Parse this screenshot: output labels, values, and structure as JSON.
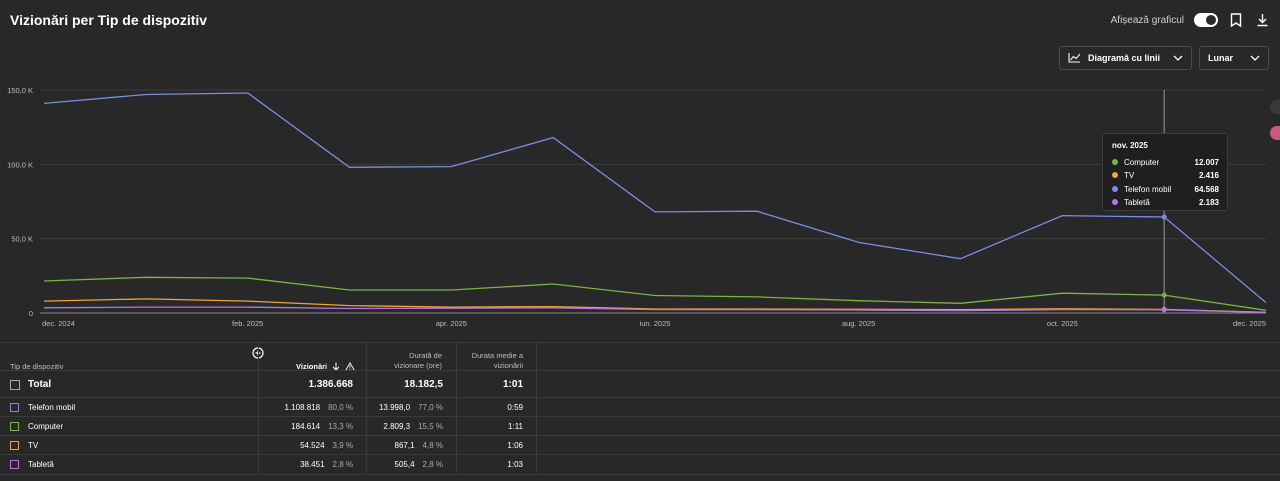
{
  "page_title": "Vizionări per Tip de dispozitiv",
  "topbar": {
    "toggle_label": "Afișează graficul"
  },
  "controls": {
    "chart_type": "Diagramă cu linii",
    "period": "Lunar"
  },
  "colors": {
    "mobile": "#7b8de0",
    "computer": "#7cb342",
    "tv": "#f0a43a",
    "tablet": "#b874e6",
    "background": "#282828"
  },
  "chart_data": {
    "type": "line",
    "x": [
      "dec. 2024",
      "ian. 2025",
      "feb. 2025",
      "mar. 2025",
      "apr. 2025",
      "mai 2025",
      "iun. 2025",
      "iul. 2025",
      "aug. 2025",
      "sept. 2025",
      "oct. 2025",
      "nov. 2025",
      "dec. 2025"
    ],
    "x_tick_labels": [
      "dec. 2024",
      "feb. 2025",
      "apr. 2025",
      "iun. 2025",
      "aug. 2025",
      "oct. 2025",
      "dec. 2025"
    ],
    "y_tick_labels": [
      "150,0 K",
      "100,0 K",
      "50,0 K",
      "0"
    ],
    "ylim": [
      0,
      150000
    ],
    "grid": true,
    "series": [
      {
        "name": "Telefon mobil",
        "color": "#7b8de0",
        "values": [
          141000,
          147000,
          148000,
          98000,
          98500,
          118000,
          68000,
          68500,
          47500,
          36500,
          65500,
          64568,
          7000
        ]
      },
      {
        "name": "Computer",
        "color": "#7cb342",
        "values": [
          21500,
          24000,
          23500,
          15500,
          15500,
          19500,
          11800,
          10800,
          8300,
          6500,
          13300,
          12007,
          1800
        ]
      },
      {
        "name": "TV",
        "color": "#f0a43a",
        "values": [
          8000,
          9500,
          8000,
          5000,
          4000,
          4300,
          2700,
          2700,
          2500,
          2200,
          2800,
          2416,
          500
        ]
      },
      {
        "name": "Tabletă",
        "color": "#b874e6",
        "values": [
          3500,
          4000,
          4000,
          3000,
          3200,
          3500,
          2300,
          2200,
          2000,
          1600,
          2300,
          2183,
          400
        ]
      }
    ],
    "tooltip": {
      "title": "nov. 2025",
      "rows": [
        {
          "name": "Computer",
          "value": "12.007"
        },
        {
          "name": "TV",
          "value": "2.416"
        },
        {
          "name": "Telefon mobil",
          "value": "64.568"
        },
        {
          "name": "Tabletă",
          "value": "2.183"
        }
      ]
    }
  },
  "table": {
    "headers": {
      "device": "Tip de dispozitiv",
      "views": "Vizionări",
      "watch_time": "Durată de vizionare (ore)",
      "avg": "Durata medie a vizionării"
    },
    "total": {
      "label": "Total",
      "views": "1.386.668",
      "watch_time": "18.182,5",
      "avg": "1:01"
    },
    "rows": [
      {
        "label": "Telefon mobil",
        "views": "1.108.818",
        "views_pct": "80,0 %",
        "watch_time": "13.998,0",
        "wt_pct": "77,0 %",
        "avg": "0:59"
      },
      {
        "label": "Computer",
        "views": "184.614",
        "views_pct": "13,3 %",
        "watch_time": "2.809,3",
        "wt_pct": "15,5 %",
        "avg": "1:11"
      },
      {
        "label": "TV",
        "views": "54.524",
        "views_pct": "3,9 %",
        "watch_time": "867,1",
        "wt_pct": "4,8 %",
        "avg": "1:06"
      },
      {
        "label": "Tabletă",
        "views": "38.451",
        "views_pct": "2,8 %",
        "watch_time": "505,4",
        "wt_pct": "2,8 %",
        "avg": "1:03"
      }
    ]
  }
}
